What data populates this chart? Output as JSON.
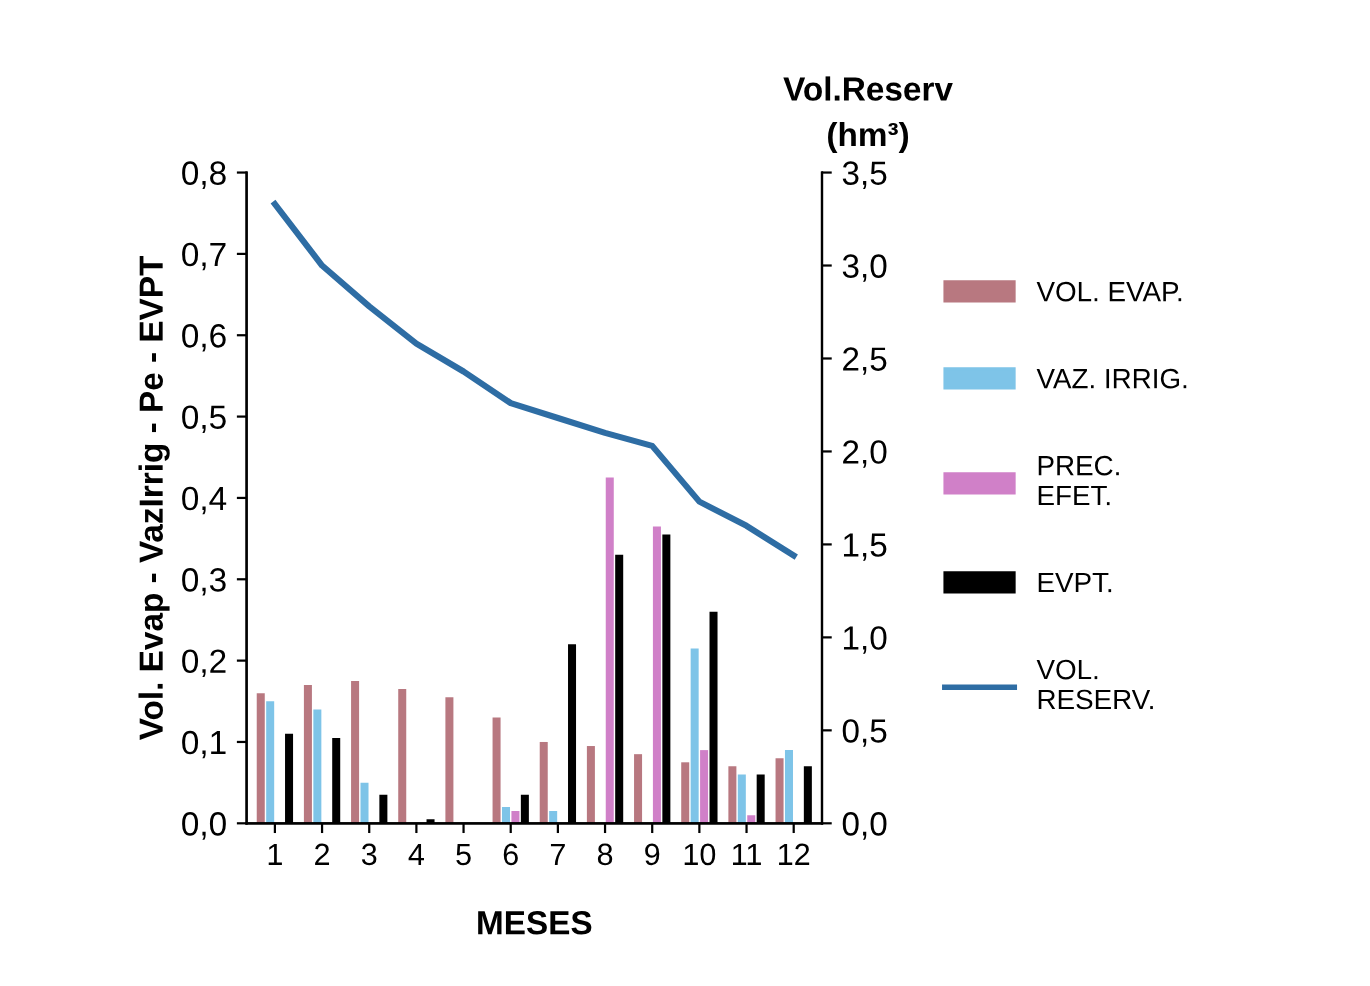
{
  "chart_data": {
    "type": "bar",
    "xlabel": "MESES",
    "ylabel": "Vol. Evap - VazIrrig - Pe - EVPT",
    "y2label": "Vol.Reserv\n(hm³)",
    "categories": [
      "1",
      "2",
      "3",
      "4",
      "5",
      "6",
      "7",
      "8",
      "9",
      "10",
      "11",
      "12"
    ],
    "series": [
      {
        "name": "VOL. EVAP.",
        "color": "#b87880",
        "values": [
          0.16,
          0.17,
          0.175,
          0.165,
          0.155,
          0.13,
          0.1,
          0.095,
          0.085,
          0.075,
          0.07,
          0.08
        ]
      },
      {
        "name": "VAZ. IRRIG.",
        "color": "#7ec4e8",
        "values": [
          0.15,
          0.14,
          0.05,
          0,
          0,
          0.02,
          0.015,
          0,
          0,
          0.215,
          0.06,
          0.09
        ]
      },
      {
        "name": "PREC.\nEFET.",
        "color": "#d080c8",
        "values": [
          0,
          0,
          0,
          0,
          0,
          0.015,
          0,
          0.425,
          0.365,
          0.09,
          0.01,
          0
        ]
      },
      {
        "name": "EVPT.",
        "color": "#000000",
        "values": [
          0.11,
          0.105,
          0.035,
          0.005,
          0,
          0.035,
          0.22,
          0.33,
          0.355,
          0.26,
          0.06,
          0.07
        ]
      },
      {
        "name": "VOL.\nRESERV.",
        "color": "#2e6da4",
        "type": "line",
        "axis": "y2",
        "values": [
          3.33,
          3.0,
          2.78,
          2.58,
          2.43,
          2.26,
          2.18,
          2.1,
          2.03,
          1.73,
          1.6,
          1.44
        ]
      }
    ],
    "ylim": [
      0,
      0.8
    ],
    "yticks": [
      {
        "value": 0,
        "label": "0,0"
      },
      {
        "value": 0.1,
        "label": "0,1"
      },
      {
        "value": 0.2,
        "label": "0,2"
      },
      {
        "value": 0.3,
        "label": "0,3"
      },
      {
        "value": 0.4,
        "label": "0,4"
      },
      {
        "value": 0.5,
        "label": "0,5"
      },
      {
        "value": 0.6,
        "label": "0,6"
      },
      {
        "value": 0.7,
        "label": "0,7"
      },
      {
        "value": 0.8,
        "label": "0,8"
      }
    ],
    "y2lim": [
      0,
      3.5
    ],
    "y2ticks": [
      {
        "value": 0,
        "label": "0,0"
      },
      {
        "value": 0.5,
        "label": "0,5"
      },
      {
        "value": 1,
        "label": "1,0"
      },
      {
        "value": 1.5,
        "label": "1,5"
      },
      {
        "value": 2,
        "label": "2,0"
      },
      {
        "value": 2.5,
        "label": "2,5"
      },
      {
        "value": 3,
        "label": "3,0"
      },
      {
        "value": 3.5,
        "label": "3,5"
      }
    ],
    "grid": false,
    "legend": "right"
  }
}
